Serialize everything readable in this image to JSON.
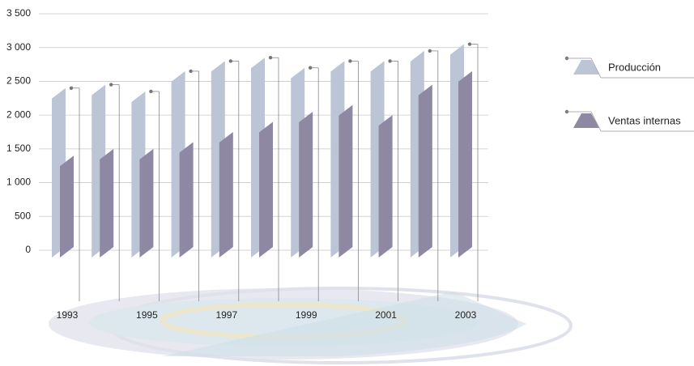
{
  "chart_data": {
    "type": "bar",
    "categories": [
      "1993",
      null,
      "1995",
      null,
      "1997",
      null,
      "1999",
      null,
      "2001",
      null,
      "2003"
    ],
    "series": [
      {
        "name": "Producción",
        "color": "#bcc5d6",
        "values": [
          2400,
          2450,
          2350,
          2650,
          2800,
          2850,
          2700,
          2800,
          2800,
          2950,
          3050
        ]
      },
      {
        "name": "Ventas internas",
        "color": "#8e88a2",
        "values": [
          1400,
          1500,
          1500,
          1600,
          1750,
          1900,
          2050,
          2150,
          2000,
          2450,
          2650
        ]
      }
    ],
    "ylim": [
      0,
      3500
    ],
    "yticks": [
      0,
      500,
      {
        "value": 1000,
        "label": "1 000"
      },
      {
        "value": 1500,
        "label": "1 500"
      },
      {
        "value": 2000,
        "label": "2 000"
      },
      {
        "value": 2500,
        "label": "2 500"
      },
      {
        "value": 3000,
        "label": "3 000"
      },
      {
        "value": 3500,
        "label": "3 500"
      }
    ],
    "grid": true
  }
}
